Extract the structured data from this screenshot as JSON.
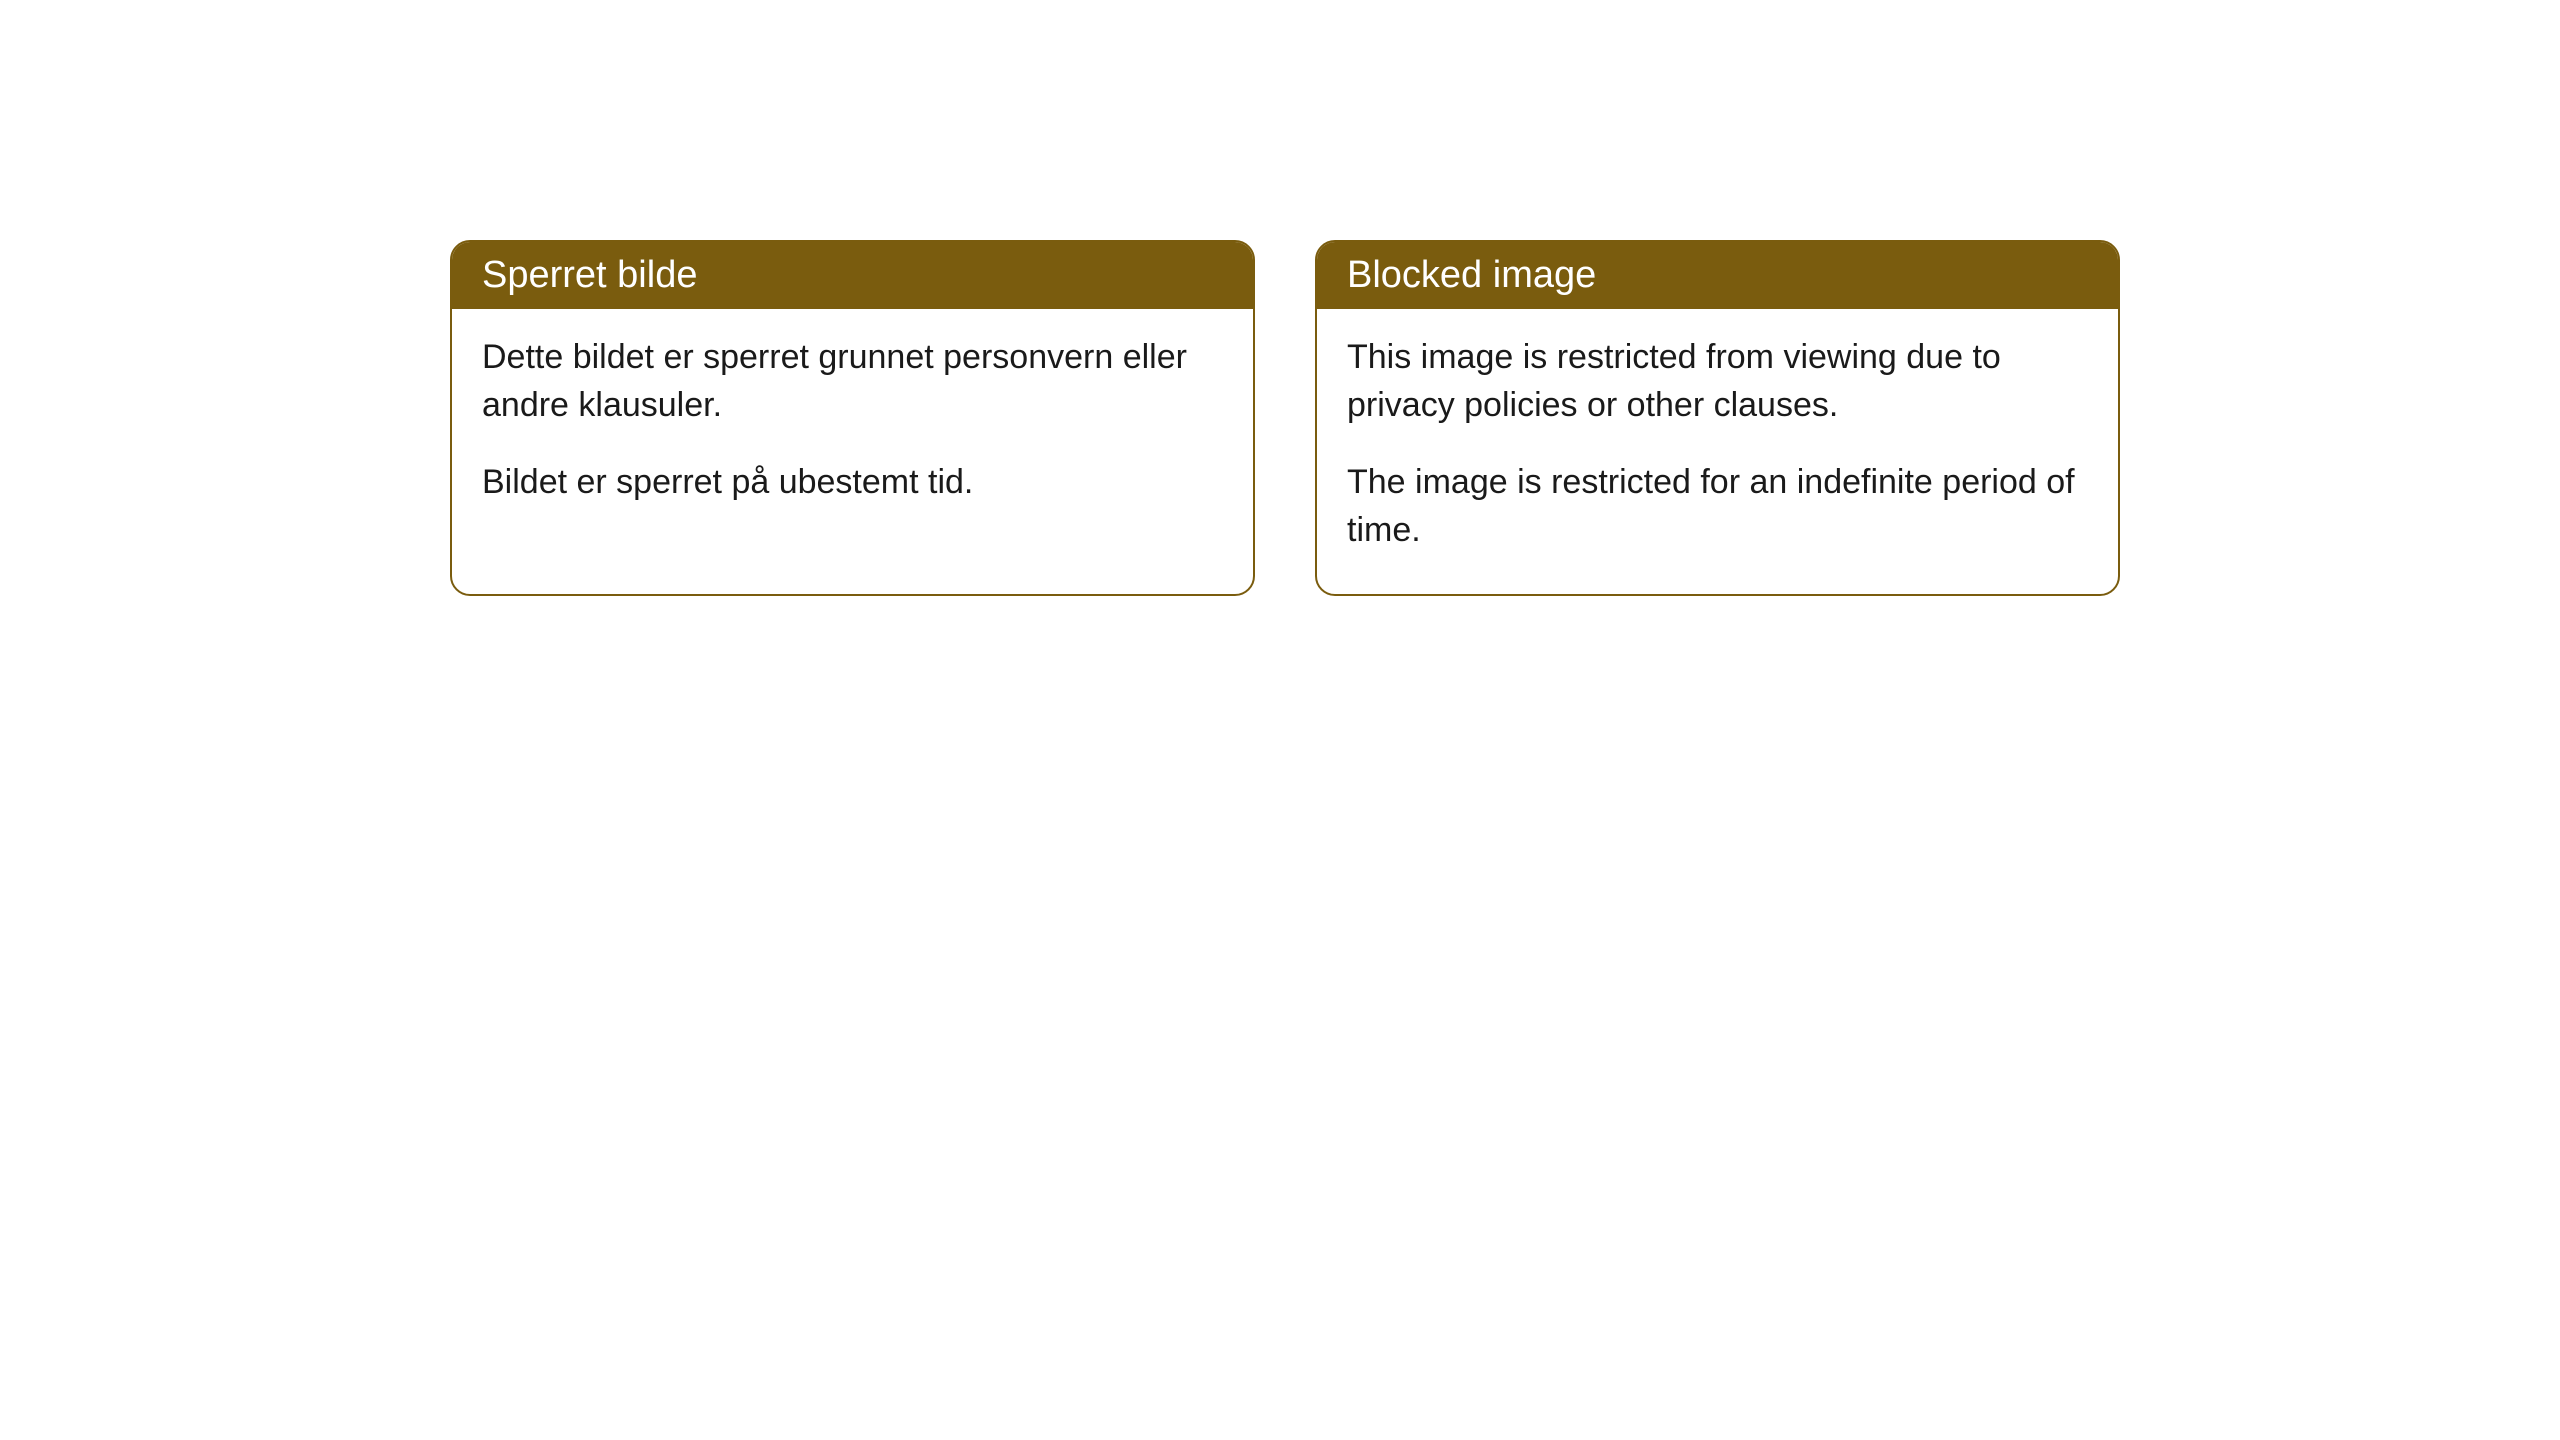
{
  "cards": [
    {
      "title": "Sperret bilde",
      "paragraph1": "Dette bildet er sperret grunnet personvern eller andre klausuler.",
      "paragraph2": "Bildet er sperret på ubestemt tid."
    },
    {
      "title": "Blocked image",
      "paragraph1": "This image is restricted from viewing due to privacy policies or other clauses.",
      "paragraph2": "The image is restricted for an indefinite period of time."
    }
  ],
  "styling": {
    "header_background": "#7a5c0e",
    "header_text_color": "#ffffff",
    "border_color": "#7a5c0e",
    "body_text_color": "#1a1a1a",
    "card_background": "#ffffff",
    "border_radius": 20,
    "header_fontsize": 38,
    "body_fontsize": 34
  }
}
